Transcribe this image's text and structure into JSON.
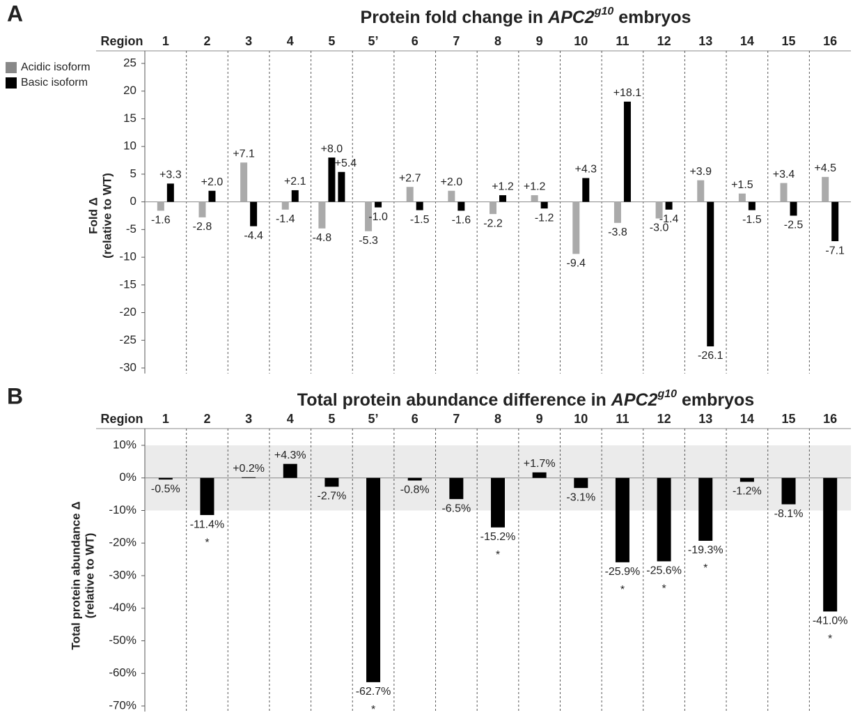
{
  "chart_data": [
    {
      "type": "bar",
      "panel": "A",
      "title": {
        "before": "Protein fold change in ",
        "gene": "APC2",
        "allele": "g10",
        "after": " embryos"
      },
      "category_label": "Region",
      "y_label": [
        "Fold Δ",
        "(relative to WT)"
      ],
      "categories": [
        "1",
        "2",
        "3",
        "4",
        "5",
        "5’",
        "6",
        "7",
        "8",
        "9",
        "10",
        "11",
        "12",
        "13",
        "14",
        "15",
        "16"
      ],
      "series": [
        {
          "name": "Acidic isoform",
          "color": "#aaaaaa",
          "values": [
            -1.6,
            -2.8,
            7.1,
            -1.4,
            -4.8,
            -5.3,
            2.7,
            2.0,
            -2.2,
            1.2,
            -9.4,
            -3.8,
            -3.0,
            3.9,
            1.5,
            3.4,
            4.5
          ],
          "value_labels": [
            "-1.6",
            "-2.8",
            "+7.1",
            "-1.4",
            "-4.8",
            "-5.3",
            "+2.7",
            "+2.0",
            "-2.2",
            "+1.2",
            "-9.4",
            "-3.8",
            "-3.0",
            "+3.9",
            "+1.5",
            "+3.4",
            "+4.5"
          ]
        },
        {
          "name": "Basic isoform",
          "color": "#000000",
          "values": [
            3.3,
            2.0,
            -4.4,
            2.1,
            8.0,
            -1.0,
            -1.5,
            -1.6,
            1.2,
            -1.2,
            4.3,
            18.1,
            -1.4,
            -26.1,
            -1.5,
            -2.5,
            -7.1
          ],
          "value_labels": [
            "+3.3",
            "+2.0",
            "-4.4",
            "+2.1",
            "+8.0",
            "-1.0",
            "-1.5",
            "-1.6",
            "+1.2",
            "-1.2",
            "+4.3",
            "+18.1",
            "-1.4",
            "-26.1",
            "-1.5",
            "-2.5",
            "-7.1"
          ]
        },
        {
          "color": "#000000",
          "values": [
            null,
            null,
            null,
            null,
            5.4,
            null,
            null,
            null,
            null,
            null,
            null,
            null,
            null,
            null,
            null,
            null,
            null
          ],
          "value_labels": [
            null,
            null,
            null,
            null,
            "+5.4",
            null,
            null,
            null,
            null,
            null,
            null,
            null,
            null,
            null,
            null,
            null,
            null
          ]
        }
      ],
      "ylim": [
        -30,
        25
      ],
      "yticks": [
        25,
        20,
        15,
        10,
        5,
        0,
        -5,
        -10,
        -15,
        -20,
        -25,
        -30
      ],
      "legend": "top-left"
    },
    {
      "type": "bar",
      "panel": "B",
      "title": {
        "before": "Total protein abundance difference in ",
        "gene": "APC2",
        "allele": "g10",
        "after": " embryos"
      },
      "category_label": "Region",
      "y_label": [
        "Total protein abundance Δ",
        "(relative to WT)"
      ],
      "categories": [
        "1",
        "2",
        "3",
        "4",
        "5",
        "5’",
        "6",
        "7",
        "8",
        "9",
        "10",
        "11",
        "12",
        "13",
        "14",
        "15",
        "16"
      ],
      "color": "#000000",
      "values": [
        -0.5,
        -11.4,
        0.2,
        4.3,
        -2.7,
        -62.7,
        -0.8,
        -6.5,
        -15.2,
        1.7,
        -3.1,
        -25.9,
        -25.6,
        -19.3,
        -1.2,
        -8.1,
        -41.0
      ],
      "value_labels": [
        "-0.5%",
        "-11.4%",
        "+0.2%",
        "+4.3%",
        "-2.7%",
        "-62.7%",
        "-0.8%",
        "-6.5%",
        "-15.2%",
        "+1.7%",
        "-3.1%",
        "-25.9%",
        "-25.6%",
        "-19.3%",
        "-1.2%",
        "-8.1%",
        "-41.0%"
      ],
      "markers": [
        null,
        "*",
        null,
        null,
        null,
        "*",
        null,
        null,
        "*",
        null,
        null,
        "*",
        "*",
        "*",
        null,
        null,
        "*"
      ],
      "shaded_band": [
        -10,
        10
      ],
      "ylim": [
        -70,
        10
      ],
      "yticks": [
        {
          "value": 10,
          "label": "10%"
        },
        {
          "value": 0,
          "label": "0%"
        },
        {
          "value": -10,
          "label": "-10%"
        },
        {
          "value": -20,
          "label": "-20%"
        },
        {
          "value": -30,
          "label": "-30%"
        },
        {
          "value": -40,
          "label": "-40%"
        },
        {
          "value": -50,
          "label": "-50%"
        },
        {
          "value": -60,
          "label": "-60%"
        },
        {
          "value": -70,
          "label": "-70%"
        }
      ]
    }
  ]
}
